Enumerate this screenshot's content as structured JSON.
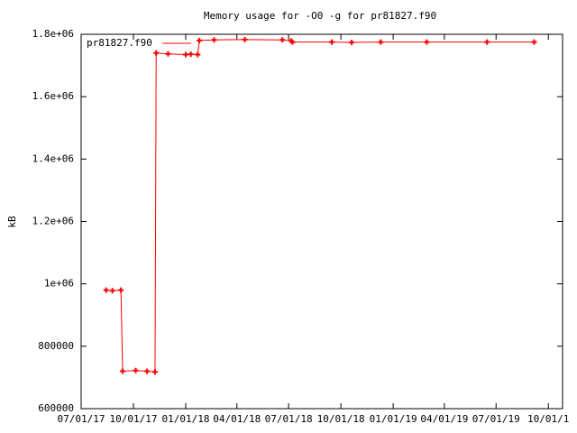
{
  "chart_data": {
    "type": "line",
    "title": "Memory usage for -O0 -g for pr81827.f90",
    "ylabel": "kB",
    "x": [
      "2017-08-14",
      "2017-08-25",
      "2017-09-09",
      "2017-09-12",
      "2017-10-05",
      "2017-10-25",
      "2017-11-08",
      "2017-11-10",
      "2017-12-01",
      "2018-01-01",
      "2018-01-10",
      "2018-01-22",
      "2018-01-25",
      "2018-02-20",
      "2018-04-15",
      "2018-06-20",
      "2018-07-05",
      "2018-07-08",
      "2018-09-15",
      "2018-10-20",
      "2018-12-10",
      "2019-03-01",
      "2019-06-15",
      "2019-09-06"
    ],
    "series": [
      {
        "name": "pr81827.f90",
        "color": "#ff0000",
        "values": [
          980000,
          978000,
          980000,
          720000,
          722000,
          720000,
          718000,
          1740000,
          1737000,
          1735000,
          1736000,
          1735000,
          1780000,
          1782000,
          1783000,
          1782000,
          1779000,
          1775000,
          1775000,
          1774000,
          1775000,
          1775000,
          1775000,
          1775000
        ]
      }
    ],
    "xlim": [
      "2017-07-01",
      "2019-10-26"
    ],
    "xticks": [
      {
        "value": "2017-07-01",
        "label": "07/01/17"
      },
      {
        "value": "2017-10-01",
        "label": "10/01/17"
      },
      {
        "value": "2018-01-01",
        "label": "01/01/18"
      },
      {
        "value": "2018-04-01",
        "label": "04/01/18"
      },
      {
        "value": "2018-07-01",
        "label": "07/01/18"
      },
      {
        "value": "2018-10-01",
        "label": "10/01/18"
      },
      {
        "value": "2019-01-01",
        "label": "01/01/19"
      },
      {
        "value": "2019-04-01",
        "label": "04/01/19"
      },
      {
        "value": "2019-07-01",
        "label": "07/01/19"
      },
      {
        "value": "2019-10-01",
        "label": "10/01/1"
      }
    ],
    "ylim": [
      600000,
      1800000
    ],
    "yticks": [
      600000,
      800000,
      {
        "value": 1000000,
        "label": "1e+06"
      },
      {
        "value": 1200000,
        "label": "1.2e+06"
      },
      {
        "value": 1400000,
        "label": "1.4e+06"
      },
      {
        "value": 1600000,
        "label": "1.6e+06"
      },
      {
        "value": 1800000,
        "label": "1.8e+06"
      }
    ],
    "legend": "top-left"
  }
}
